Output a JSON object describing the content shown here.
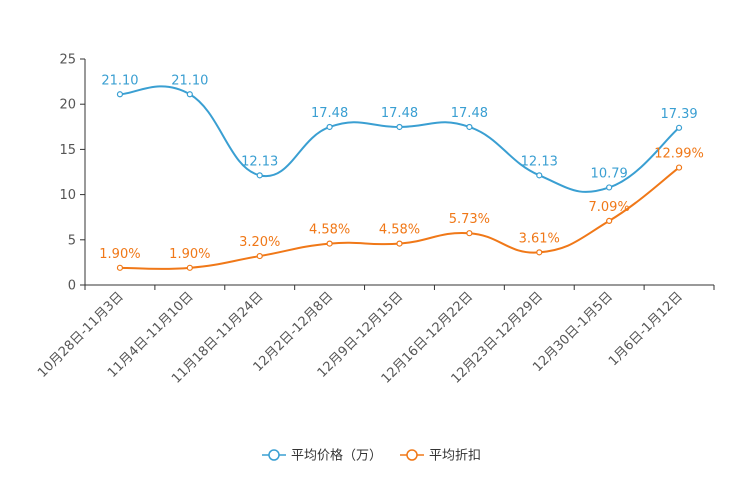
{
  "chart_data": {
    "type": "line",
    "title": "",
    "xlabel": "",
    "ylabel": "",
    "ylim": [
      0,
      25
    ],
    "yticks": [
      0,
      5,
      10,
      15,
      20,
      25
    ],
    "categories": [
      "10月28日-11月3日",
      "11月4日-11月10日",
      "11月18日-11月24日",
      "12月2日-12月8日",
      "12月9日-12月15日",
      "12月16日-12月22日",
      "12月23日-12月29日",
      "12月30日-1月5日",
      "1月6日-1月12日"
    ],
    "series": [
      {
        "name": "平均价格（万）",
        "color": "#3a9fd2",
        "values": [
          21.1,
          21.1,
          12.13,
          17.48,
          17.48,
          17.48,
          12.13,
          10.79,
          17.39
        ],
        "labels": [
          "21.10",
          "21.10",
          "12.13",
          "17.48",
          "17.48",
          "17.48",
          "12.13",
          "10.79",
          "17.39"
        ]
      },
      {
        "name": "平均折扣",
        "color": "#f07818",
        "values": [
          1.9,
          1.9,
          3.2,
          4.58,
          4.58,
          5.73,
          3.61,
          7.09,
          12.99
        ],
        "labels": [
          "1.90%",
          "1.90%",
          "3.20%",
          "4.58%",
          "4.58%",
          "5.73%",
          "3.61%",
          "7.09%",
          "12.99%"
        ]
      }
    ],
    "legend": "bottom-center",
    "grid": false
  }
}
